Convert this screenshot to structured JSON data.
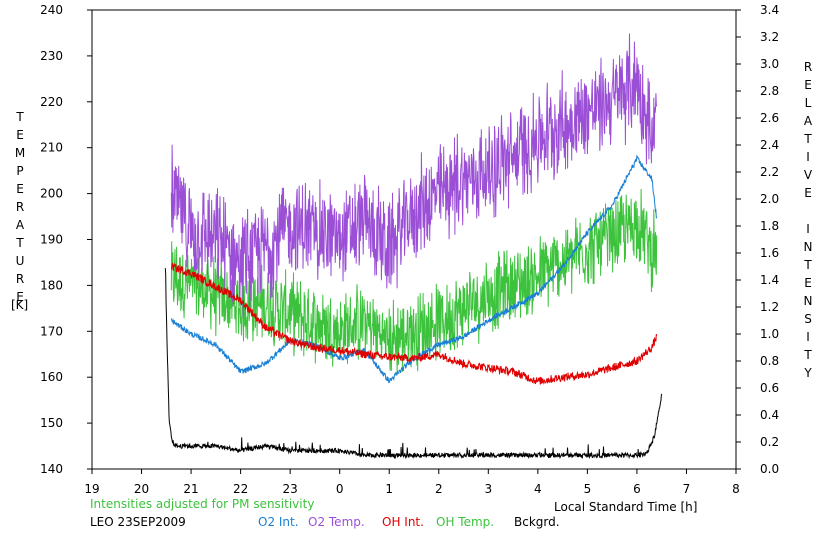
{
  "chart_data": {
    "type": "line",
    "xlabel": "Local Standard Time [h]",
    "ylabel_left": "TEMPERATURE",
    "ylabel_left_unit": "[K]",
    "ylabel_right": "RELATIVE INTENSITY",
    "x_ticks": [
      "19",
      "20",
      "21",
      "22",
      "23",
      "0",
      "1",
      "2",
      "3",
      "4",
      "5",
      "6",
      "7",
      "8"
    ],
    "x_range": [
      19,
      32
    ],
    "ylim_left": [
      140,
      240
    ],
    "ylim_right": [
      0.0,
      3.4
    ],
    "y_ticks_left": [
      140,
      150,
      160,
      170,
      180,
      190,
      200,
      210,
      220,
      230,
      240
    ],
    "y_ticks_right": [
      "0.0",
      "0.2",
      "0.4",
      "0.6",
      "0.8",
      "1.0",
      "1.2",
      "1.4",
      "1.6",
      "1.8",
      "2.0",
      "2.2",
      "2.4",
      "2.6",
      "2.8",
      "3.0",
      "3.2",
      "3.4"
    ],
    "note": "Intensities adjusted for PM sensitivity",
    "station_label": "LEO 23SEP2009",
    "colors": {
      "o2_int": "#1a7fd4",
      "o2_temp": "#9b4fd6",
      "oh_int": "#e00000",
      "oh_temp": "#3cc23c",
      "bckgrd": "#000000",
      "axis": "#000000",
      "note": "#3cc23c"
    },
    "series": [
      {
        "name": "O2 Int.",
        "axis": "right",
        "color": "#1a7fd4",
        "noise": 0.02,
        "x": [
          20.6,
          21.0,
          21.5,
          22.0,
          22.5,
          23.0,
          23.5,
          24.0,
          24.5,
          25.0,
          25.5,
          26.0,
          26.5,
          27.0,
          27.5,
          28.0,
          28.5,
          29.0,
          29.5,
          30.0,
          30.3,
          30.4
        ],
        "y": [
          1.1,
          1.0,
          0.92,
          0.72,
          0.78,
          0.95,
          0.92,
          0.82,
          0.88,
          0.65,
          0.82,
          0.92,
          0.98,
          1.1,
          1.2,
          1.3,
          1.5,
          1.75,
          1.95,
          2.3,
          2.15,
          1.85
        ]
      },
      {
        "name": "O2 Temp.",
        "axis": "left",
        "color": "#9b4fd6",
        "noise": 9,
        "x": [
          20.6,
          21.0,
          21.5,
          22.0,
          22.5,
          23.0,
          23.5,
          24.0,
          24.5,
          25.0,
          25.5,
          26.0,
          26.5,
          27.0,
          27.5,
          28.0,
          28.5,
          29.0,
          29.5,
          30.0,
          30.3,
          30.4
        ],
        "y": [
          200,
          192,
          190,
          185,
          188,
          193,
          192,
          190,
          194,
          188,
          196,
          200,
          203,
          205,
          208,
          212,
          215,
          218,
          220,
          225,
          212,
          216
        ]
      },
      {
        "name": "OH Int.",
        "axis": "right",
        "color": "#e00000",
        "noise": 0.03,
        "x": [
          20.6,
          21.0,
          21.5,
          22.0,
          22.5,
          23.0,
          23.5,
          24.0,
          24.5,
          25.0,
          25.5,
          26.0,
          26.5,
          27.0,
          27.5,
          28.0,
          28.5,
          29.0,
          29.5,
          30.0,
          30.3,
          30.4
        ],
        "y": [
          1.5,
          1.45,
          1.35,
          1.25,
          1.05,
          0.95,
          0.9,
          0.88,
          0.85,
          0.83,
          0.82,
          0.85,
          0.78,
          0.75,
          0.72,
          0.65,
          0.68,
          0.7,
          0.75,
          0.8,
          0.9,
          0.98
        ]
      },
      {
        "name": "OH Temp.",
        "axis": "left",
        "color": "#3cc23c",
        "noise": 7,
        "x": [
          20.6,
          21.0,
          21.5,
          22.0,
          22.5,
          23.0,
          23.5,
          24.0,
          24.5,
          25.0,
          25.5,
          26.0,
          26.5,
          27.0,
          27.5,
          28.0,
          28.5,
          29.0,
          29.5,
          30.0,
          30.3,
          30.4
        ],
        "y": [
          182,
          180,
          178,
          175,
          176,
          174,
          172,
          170,
          172,
          168,
          170,
          172,
          175,
          178,
          180,
          182,
          185,
          188,
          190,
          194,
          188,
          186
        ]
      },
      {
        "name": "Bckgrd.",
        "axis": "left",
        "color": "#000000",
        "noise": 0.5,
        "x": [
          20.48,
          20.52,
          20.56,
          20.62,
          20.7,
          21.0,
          21.5,
          22.0,
          22.5,
          23.0,
          23.5,
          24.0,
          24.5,
          25.0,
          25.5,
          26.0,
          26.5,
          27.0,
          27.5,
          28.0,
          28.5,
          29.0,
          29.5,
          30.0,
          30.2,
          30.35,
          30.5
        ],
        "y": [
          184,
          165,
          150,
          146,
          145,
          145,
          145,
          144,
          145,
          144,
          144,
          144,
          143,
          143,
          143,
          143,
          143,
          143,
          143,
          143,
          143,
          143,
          143,
          143,
          143.5,
          147,
          156
        ]
      }
    ]
  }
}
